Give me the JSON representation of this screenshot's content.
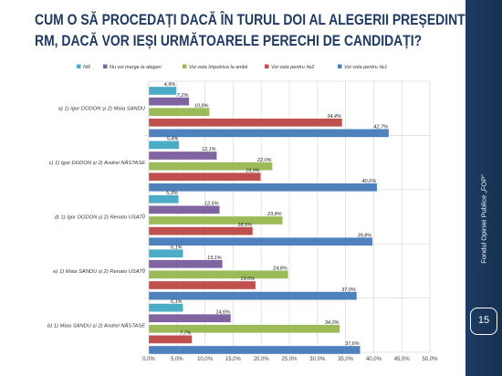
{
  "title": {
    "line1": "CUM O SĂ PROCEDAȚI DACĂ ÎN TURUL DOI AL ALEGERII PREȘEDINTELUI",
    "line2": "RM, DACĂ VOR IEȘI URMĂTOARELE PERECHI DE CANDIDAȚI?"
  },
  "side_panel": {
    "text": "Fondul Opiniei Publice „FOP”",
    "page_number": "15"
  },
  "chart_data": {
    "type": "bar",
    "orientation": "horizontal",
    "grid": true,
    "legend_position": "top",
    "xlim": [
      0,
      50
    ],
    "x_ticks": [
      "0,0%",
      "5,0%",
      "10,0%",
      "15,0%",
      "20,0%",
      "25,0%",
      "30,0%",
      "35,0%",
      "40,0%",
      "45,0%",
      "50,0%"
    ],
    "categories": [
      "a)  1) Igor DODON și  2) Maia SANDU",
      "c)  1) Igor DODON și  2) Andrei NĂSTASE",
      "d)  1) Igor DODON și  2) Renato USATÎI",
      "e)  1) Maia SANDU și  2) Renato USATÎI",
      "b)  1) Maia SANDU și  2) Andrei NĂSTASE"
    ],
    "series": [
      {
        "name": "NR",
        "color": "#4bacc6",
        "values": [
          4.9,
          5.4,
          5.3,
          6.1,
          6.1
        ],
        "labels": [
          "4,9%",
          "5,4%",
          "5,3%",
          "6,1%",
          "6,1%"
        ]
      },
      {
        "name": "Nu voi merge la alegeri",
        "color": "#8064a2",
        "values": [
          7.2,
          12.1,
          12.6,
          13.1,
          14.6
        ],
        "labels": [
          "7,2%",
          "12,1%",
          "12,6%",
          "13,1%",
          "14,6%"
        ]
      },
      {
        "name": "Voi vota împotriva la ambii",
        "color": "#9bbb59",
        "values": [
          10.8,
          22.0,
          23.8,
          24.8,
          34.0
        ],
        "labels": [
          "10,8%",
          "22,0%",
          "23,8%",
          "24,8%",
          "34,0%"
        ]
      },
      {
        "name": "Voi vota pentru  №2",
        "color": "#c0504d",
        "values": [
          34.4,
          19.9,
          18.5,
          19.0,
          7.7
        ],
        "labels": [
          "34,4%",
          "19,9%",
          "18,5%",
          "19,0%",
          "7,7%"
        ]
      },
      {
        "name": "Voi vota pentru  №1",
        "color": "#4f81bd",
        "values": [
          42.7,
          40.6,
          39.8,
          37.0,
          37.6
        ],
        "labels": [
          "42,7%",
          "40,6%",
          "39,8%",
          "37,0%",
          "37,6%"
        ]
      }
    ]
  }
}
